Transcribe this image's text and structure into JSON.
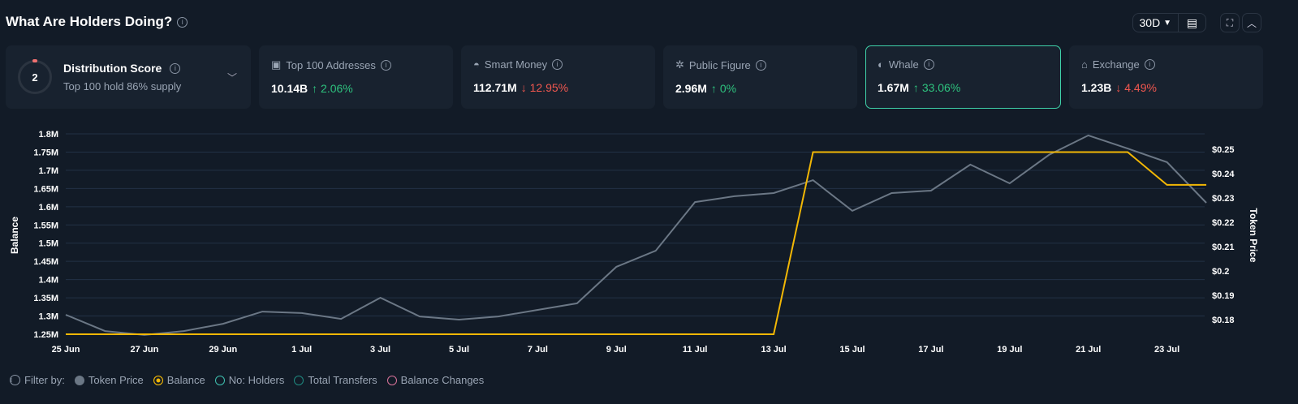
{
  "header": {
    "title": "What Are Holders Doing?",
    "range": "30D",
    "icons": [
      "info-icon",
      "calendar-icon",
      "fullscreen-icon",
      "chevron-up-icon"
    ]
  },
  "distribution": {
    "score": "2",
    "label": "Distribution Score",
    "sub": "Top 100 hold 86% supply"
  },
  "cards": [
    {
      "label": "Top 100 Addresses",
      "value": "10.14B",
      "change": "2.06%",
      "dir": "up",
      "icon": "money-icon"
    },
    {
      "label": "Smart Money",
      "value": "112.71M",
      "change": "12.95%",
      "dir": "down",
      "icon": "smart-money-icon"
    },
    {
      "label": "Public Figure",
      "value": "2.96M",
      "change": "0%",
      "dir": "up",
      "icon": "public-figure-icon"
    },
    {
      "label": "Whale",
      "value": "1.67M",
      "change": "33.06%",
      "dir": "up",
      "icon": "whale-icon",
      "selected": true
    },
    {
      "label": "Exchange",
      "value": "1.23B",
      "change": "4.49%",
      "dir": "down",
      "icon": "bank-icon"
    }
  ],
  "legend": {
    "label": "Filter by:",
    "items": [
      {
        "label": "Token Price",
        "color": "#6b7785",
        "filled": true
      },
      {
        "label": "Balance",
        "color": "#f2b705",
        "active": true
      },
      {
        "label": "No: Holders",
        "color": "#3fc1b0"
      },
      {
        "label": "Total Transfers",
        "color": "#1f8a80"
      },
      {
        "label": "Balance Changes",
        "color": "#d9739a"
      }
    ]
  },
  "chart_data": {
    "type": "line",
    "x": [
      "25 Jun",
      "26 Jun",
      "27 Jun",
      "28 Jun",
      "29 Jun",
      "30 Jun",
      "1 Jul",
      "2 Jul",
      "3 Jul",
      "4 Jul",
      "5 Jul",
      "6 Jul",
      "7 Jul",
      "8 Jul",
      "9 Jul",
      "10 Jul",
      "11 Jul",
      "12 Jul",
      "13 Jul",
      "14 Jul",
      "15 Jul",
      "16 Jul",
      "17 Jul",
      "18 Jul",
      "19 Jul",
      "20 Jul",
      "21 Jul",
      "22 Jul",
      "23 Jul",
      "24 Jul"
    ],
    "xticks": [
      "25 Jun",
      "27 Jun",
      "29 Jun",
      "1 Jul",
      "3 Jul",
      "5 Jul",
      "7 Jul",
      "9 Jul",
      "11 Jul",
      "13 Jul",
      "15 Jul",
      "17 Jul",
      "19 Jul",
      "21 Jul",
      "23 Jul"
    ],
    "ylabel": "Balance",
    "y2label": "Token Price",
    "ylim": [
      1.25,
      1.8
    ],
    "yticks": [
      "1.25M",
      "1.3M",
      "1.35M",
      "1.4M",
      "1.45M",
      "1.5M",
      "1.55M",
      "1.6M",
      "1.65M",
      "1.7M",
      "1.75M",
      "1.8M"
    ],
    "y2lim": [
      0.18,
      0.25
    ],
    "y2ticks": [
      "$0.18",
      "$0.19",
      "$0.2",
      "$0.21",
      "$0.22",
      "$0.23",
      "$0.24",
      "$0.25"
    ],
    "series": [
      {
        "name": "Balance",
        "color": "#f2b705",
        "axis": "left",
        "values": [
          1.25,
          1.25,
          1.25,
          1.25,
          1.25,
          1.25,
          1.25,
          1.25,
          1.25,
          1.25,
          1.25,
          1.25,
          1.25,
          1.25,
          1.25,
          1.25,
          1.25,
          1.25,
          1.25,
          1.75,
          1.75,
          1.75,
          1.75,
          1.75,
          1.75,
          1.75,
          1.75,
          1.75,
          1.66,
          1.66
        ]
      },
      {
        "name": "Token Price",
        "color": "#6b7785",
        "axis": "right",
        "values": [
          0.182,
          0.1753,
          0.1737,
          0.1753,
          0.1783,
          0.1833,
          0.1827,
          0.1803,
          0.189,
          0.1813,
          0.18,
          0.1813,
          0.184,
          0.1867,
          0.2017,
          0.2083,
          0.2283,
          0.2307,
          0.232,
          0.2373,
          0.2247,
          0.232,
          0.233,
          0.2437,
          0.236,
          0.2477,
          0.2557,
          0.2503,
          0.2447,
          0.228
        ]
      }
    ],
    "grid": true
  }
}
